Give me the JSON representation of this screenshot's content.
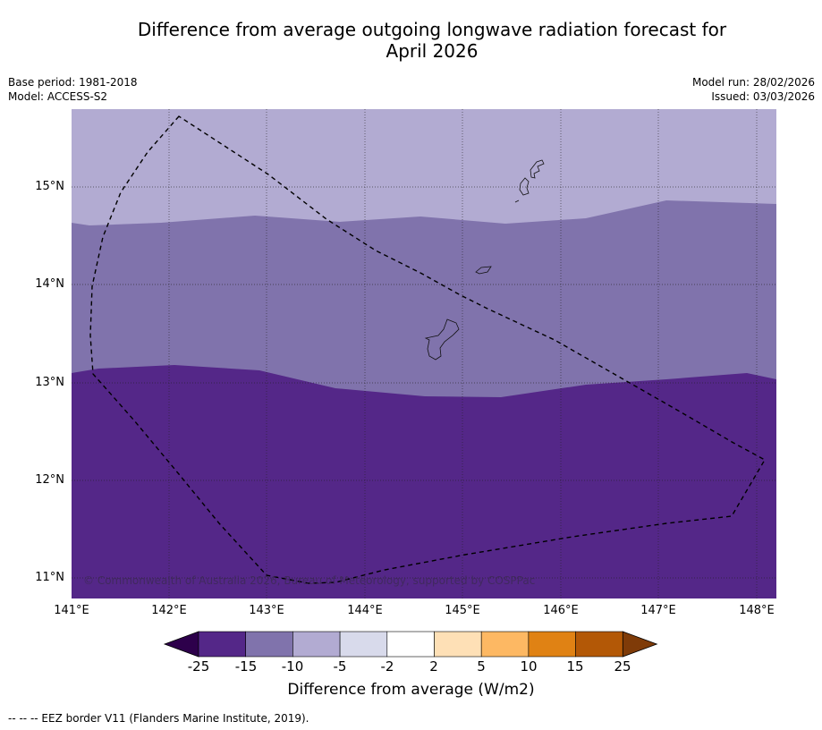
{
  "title_line1": "Difference from average outgoing longwave radiation forecast for",
  "title_line2": "April 2026",
  "base_period": "Base period: 1981-2018",
  "model": "Model: ACCESS-S2",
  "model_run": "Model run: 28/02/2026",
  "issued": "Issued: 03/03/2026",
  "copyright": "© Commonwealth of Australia 2026, Bureau of Meteorology, supported by COSPPac",
  "lat_labels": [
    "15°N",
    "14°N",
    "13°N",
    "12°N",
    "11°N"
  ],
  "lon_labels": [
    "141°E",
    "142°E",
    "143°E",
    "144°E",
    "145°E",
    "146°E",
    "147°E",
    "148°E"
  ],
  "colorbar": {
    "ticks": [
      "-25",
      "-15",
      "-10",
      "-5",
      "-2",
      "2",
      "5",
      "10",
      "15",
      "25"
    ],
    "colors": [
      "#2d004b",
      "#542788",
      "#8073ac",
      "#b2abd2",
      "#d8daeb",
      "#ffffff",
      "#fee0b6",
      "#fdb863",
      "#e08214",
      "#b35806",
      "#7f3b08"
    ],
    "label": "Difference from average (W/m2)"
  },
  "legend_note": "--  --  -- EEZ border V11 (Flanders Marine Institute, 2019).",
  "map_fill": {
    "north_band_color": "#b2abd2",
    "middle_band_color": "#8073ac",
    "south_band_color": "#542788"
  }
}
